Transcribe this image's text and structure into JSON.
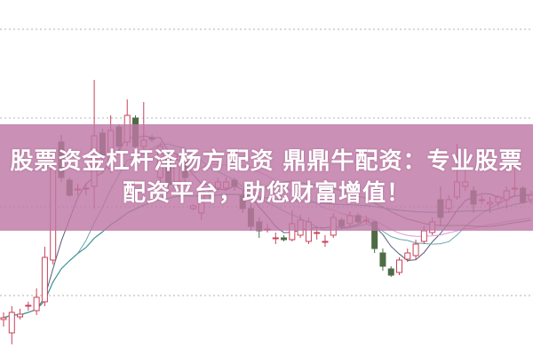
{
  "banner": {
    "line1": "股票资金杠杆泽杨方配资 鼎鼎牛配资：专业股票",
    "line2": "配资平台，助您财富增值！"
  },
  "chart_data": {
    "type": "candlestick",
    "title": "股票资金杠杆泽杨方配资 鼎鼎牛配资：专业股票配资平台，助您财富增值！",
    "xlabel": "",
    "ylabel": "",
    "ylim": [
      0,
      40
    ],
    "grid": true,
    "colors": {
      "up": "#c8405a",
      "down": "#4f6b46",
      "grid": "#b0b0b0",
      "ma": [
        "#5a5a7a",
        "#6aa6b0",
        "#d99ad8",
        "#4a8a4a",
        "#3a9a9a"
      ]
    },
    "moving_averages": [
      5,
      10,
      20,
      30,
      60
    ],
    "candles": [
      [
        4.0,
        4.2,
        4.8,
        3.2
      ],
      [
        2.5,
        4.8,
        5.5,
        1.2
      ],
      [
        4.3,
        4.6,
        5.2,
        4.0
      ],
      [
        5.5,
        5.6,
        6.0,
        5.0
      ],
      [
        5.0,
        6.5,
        7.5,
        4.5
      ],
      [
        6.0,
        11.0,
        12.2,
        5.5
      ],
      [
        10.7,
        21.0,
        23.0,
        10.2
      ],
      [
        24.0,
        20.0,
        24.8,
        19.5
      ],
      [
        19.7,
        18.0,
        20.0,
        17.8
      ],
      [
        18.7,
        18.7,
        19.3,
        18.0
      ],
      [
        18.7,
        18.8,
        19.3,
        18.0
      ],
      [
        19.0,
        24.7,
        31.0,
        16.5
      ],
      [
        25.0,
        22.5,
        25.5,
        22.0
      ],
      [
        21.0,
        25.3,
        27.0,
        20.5
      ],
      [
        25.7,
        23.5,
        26.0,
        23.0
      ],
      [
        24.0,
        27.0,
        28.8,
        23.5
      ],
      [
        26.7,
        23.5,
        27.0,
        23.0
      ],
      [
        23.5,
        24.2,
        28.5,
        23.2
      ],
      [
        24.5,
        24.3,
        24.8,
        24.0
      ],
      [
        20.0,
        23.5,
        24.0,
        19.0
      ],
      [
        22.0,
        19.2,
        23.0,
        18.5
      ],
      [
        19.5,
        22.0,
        22.5,
        19.0
      ],
      [
        22.0,
        20.0,
        22.5,
        19.5
      ],
      [
        16.5,
        16.8,
        17.0,
        16.3
      ],
      [
        16.0,
        18.5,
        19.0,
        15.2
      ],
      [
        18.8,
        18.7,
        19.5,
        17.5
      ],
      [
        18.8,
        19.5,
        20.0,
        18.5
      ],
      [
        18.8,
        19.5,
        20.0,
        18.5
      ],
      [
        19.7,
        19.0,
        20.0,
        18.5
      ],
      [
        18.0,
        16.5,
        18.5,
        16.0
      ],
      [
        16.5,
        14.5,
        17.0,
        14.0
      ],
      [
        15.0,
        14.0,
        15.5,
        13.2
      ],
      [
        14.2,
        14.2,
        14.8,
        13.8
      ],
      [
        13.2,
        13.2,
        13.8,
        12.5
      ],
      [
        13.2,
        13.0,
        13.5,
        12.8
      ],
      [
        13.0,
        14.8,
        16.3,
        12.8
      ],
      [
        13.5,
        15.2,
        15.8,
        13.2
      ],
      [
        12.8,
        15.0,
        15.5,
        12.5
      ],
      [
        13.8,
        13.8,
        14.5,
        13.0
      ],
      [
        12.8,
        12.8,
        13.5,
        12.2
      ],
      [
        13.5,
        15.5,
        16.0,
        13.2
      ],
      [
        15.2,
        14.5,
        15.5,
        14.2
      ],
      [
        14.8,
        15.7,
        16.2,
        14.5
      ],
      [
        15.7,
        15.0,
        16.0,
        14.8
      ],
      [
        15.2,
        15.2,
        15.7,
        14.8
      ],
      [
        15.0,
        12.0,
        15.2,
        11.5
      ],
      [
        11.5,
        10.0,
        12.0,
        9.5
      ],
      [
        9.7,
        9.0,
        10.0,
        8.8
      ],
      [
        9.3,
        10.7,
        11.0,
        9.0
      ],
      [
        10.8,
        11.5,
        12.0,
        10.5
      ],
      [
        11.2,
        12.5,
        13.0,
        10.8
      ],
      [
        12.8,
        14.0,
        14.5,
        12.5
      ],
      [
        13.8,
        15.0,
        15.5,
        13.5
      ],
      [
        17.5,
        15.5,
        19.0,
        14.5
      ],
      [
        16.5,
        17.5,
        18.0,
        16.0
      ],
      [
        17.8,
        19.5,
        23.8,
        17.5
      ],
      [
        19.0,
        19.5,
        21.0,
        18.5
      ],
      [
        18.5,
        17.0,
        19.0,
        16.0
      ],
      [
        17.5,
        17.5,
        18.0,
        17.0
      ],
      [
        17.0,
        17.2,
        17.8,
        16.0
      ],
      [
        17.2,
        17.8,
        18.0,
        16.8
      ],
      [
        17.5,
        18.5,
        19.0,
        16.5
      ],
      [
        18.8,
        18.8,
        21.5,
        18.0
      ],
      [
        18.8,
        17.2,
        19.0,
        17.0
      ],
      [
        17.5,
        18.0,
        18.5,
        17.0
      ]
    ]
  }
}
